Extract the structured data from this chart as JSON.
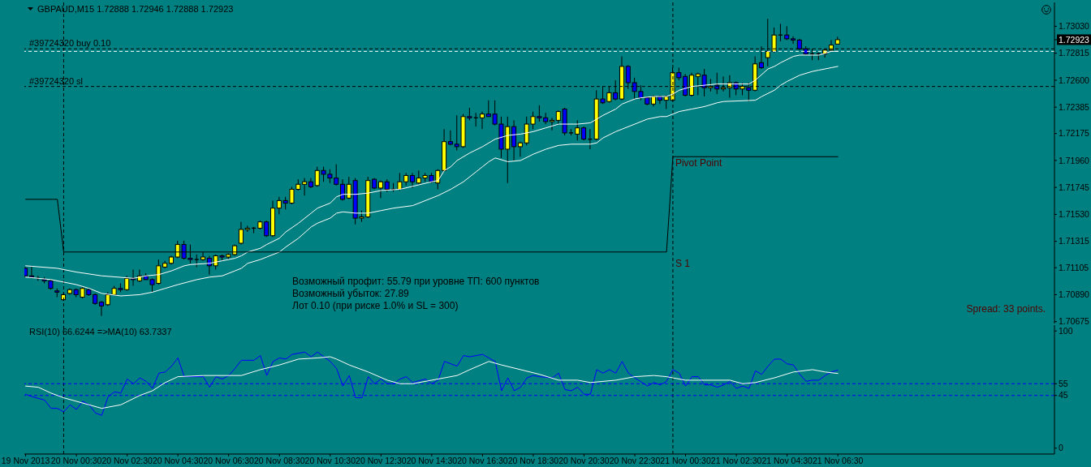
{
  "chart_data": [
    {
      "type": "candlestick",
      "title": "GBPAUD,M15 1.72888 1.72946 1.72888 1.72923",
      "x": [
        "2013-11-19T22:30",
        "2013-11-19T22:45",
        "2013-11-19T23:00",
        "2013-11-19T23:15",
        "2013-11-19T23:30",
        "2013-11-19T23:45",
        "2013-11-20T00:00",
        "2013-11-20T00:15",
        "2013-11-20T00:30",
        "2013-11-20T00:45",
        "2013-11-20T01:00",
        "2013-11-20T01:15",
        "2013-11-20T01:30",
        "2013-11-20T01:45",
        "2013-11-20T02:00",
        "2013-11-20T02:15",
        "2013-11-20T02:30",
        "2013-11-20T02:45",
        "2013-11-20T03:00",
        "2013-11-20T03:15",
        "2013-11-20T03:30",
        "2013-11-20T03:45",
        "2013-11-20T04:00",
        "2013-11-20T04:15",
        "2013-11-20T04:30",
        "2013-11-20T04:45",
        "2013-11-20T05:00",
        "2013-11-20T05:15",
        "2013-11-20T05:30",
        "2013-11-20T05:45",
        "2013-11-20T06:00",
        "2013-11-20T06:15",
        "2013-11-20T06:30",
        "2013-11-20T06:45",
        "2013-11-20T07:00",
        "2013-11-20T07:15",
        "2013-11-20T07:30",
        "2013-11-20T07:45",
        "2013-11-20T08:00",
        "2013-11-20T08:15",
        "2013-11-20T08:30",
        "2013-11-20T08:45",
        "2013-11-20T09:00",
        "2013-11-20T09:15",
        "2013-11-20T09:30",
        "2013-11-20T09:45",
        "2013-11-20T10:00",
        "2013-11-20T10:15",
        "2013-11-20T10:30",
        "2013-11-20T10:45",
        "2013-11-20T11:00",
        "2013-11-20T11:15",
        "2013-11-20T11:30",
        "2013-11-20T11:45",
        "2013-11-20T12:00",
        "2013-11-20T12:15",
        "2013-11-20T12:30",
        "2013-11-20T12:45",
        "2013-11-20T13:00",
        "2013-11-20T13:15",
        "2013-11-20T13:30",
        "2013-11-20T13:45",
        "2013-11-20T14:00",
        "2013-11-20T14:15",
        "2013-11-20T14:30",
        "2013-11-20T14:45",
        "2013-11-20T15:00",
        "2013-11-20T15:15",
        "2013-11-20T15:30",
        "2013-11-20T15:45",
        "2013-11-20T16:00",
        "2013-11-20T16:15",
        "2013-11-20T16:30",
        "2013-11-20T16:45",
        "2013-11-20T17:00",
        "2013-11-20T17:15",
        "2013-11-20T17:30",
        "2013-11-20T17:45",
        "2013-11-20T18:00",
        "2013-11-20T18:15",
        "2013-11-20T18:30",
        "2013-11-20T18:45",
        "2013-11-20T19:00",
        "2013-11-20T19:15",
        "2013-11-20T19:30",
        "2013-11-20T19:45",
        "2013-11-20T20:00",
        "2013-11-20T20:15",
        "2013-11-20T20:30",
        "2013-11-20T20:45",
        "2013-11-20T21:00",
        "2013-11-20T21:15",
        "2013-11-20T21:30",
        "2013-11-20T21:45",
        "2013-11-20T22:00",
        "2013-11-20T22:15",
        "2013-11-20T22:30",
        "2013-11-20T22:45",
        "2013-11-20T23:00",
        "2013-11-20T23:15",
        "2013-11-20T23:30",
        "2013-11-20T23:45",
        "2013-11-21T00:00",
        "2013-11-21T00:15",
        "2013-11-21T00:30",
        "2013-11-21T00:45",
        "2013-11-21T01:00",
        "2013-11-21T01:15",
        "2013-11-21T01:30",
        "2013-11-21T01:45",
        "2013-11-21T02:00",
        "2013-11-21T02:15",
        "2013-11-21T02:30",
        "2013-11-21T02:45",
        "2013-11-21T03:00",
        "2013-11-21T03:15",
        "2013-11-21T03:30",
        "2013-11-21T03:45",
        "2013-11-21T04:00",
        "2013-11-21T04:15",
        "2013-11-21T04:30",
        "2013-11-21T04:45",
        "2013-11-21T05:00",
        "2013-11-21T05:15",
        "2013-11-21T05:30",
        "2013-11-21T05:45",
        "2013-11-21T06:00",
        "2013-11-21T06:15",
        "2013-11-21T06:30"
      ],
      "ohlc": [
        [
          1.711,
          1.7111,
          1.7103,
          1.7104
        ],
        [
          1.7104,
          1.7112,
          1.7102,
          1.7103
        ],
        [
          1.7102,
          1.7104,
          1.71,
          1.7102
        ],
        [
          1.7101,
          1.7103,
          1.7098,
          1.71
        ],
        [
          1.71,
          1.7101,
          1.7093,
          1.7094
        ],
        [
          1.7092,
          1.7094,
          1.7087,
          1.7091
        ],
        [
          1.7085,
          1.709,
          1.7084,
          1.7089
        ],
        [
          1.709,
          1.7094,
          1.7089,
          1.7093
        ],
        [
          1.7093,
          1.7094,
          1.7087,
          1.7089
        ],
        [
          1.7087,
          1.7095,
          1.7086,
          1.7094
        ],
        [
          1.7093,
          1.7094,
          1.7088,
          1.7089
        ],
        [
          1.7089,
          1.709,
          1.7081,
          1.7082
        ],
        [
          1.7083,
          1.7084,
          1.7072,
          1.708
        ],
        [
          1.7081,
          1.7091,
          1.708,
          1.7089
        ],
        [
          1.7089,
          1.7096,
          1.7089,
          1.7094
        ],
        [
          1.7094,
          1.7098,
          1.7091,
          1.7093
        ],
        [
          1.7093,
          1.7104,
          1.7092,
          1.7102
        ],
        [
          1.7102,
          1.7109,
          1.7096,
          1.7101
        ],
        [
          1.71,
          1.7109,
          1.7099,
          1.7104
        ],
        [
          1.7104,
          1.7106,
          1.7101,
          1.7101
        ],
        [
          1.7101,
          1.7102,
          1.7091,
          1.7097
        ],
        [
          1.7098,
          1.7117,
          1.7097,
          1.7112
        ],
        [
          1.7111,
          1.7116,
          1.711,
          1.7114
        ],
        [
          1.7114,
          1.712,
          1.7113,
          1.7119
        ],
        [
          1.7119,
          1.7132,
          1.7118,
          1.7129
        ],
        [
          1.7129,
          1.7132,
          1.7117,
          1.7118
        ],
        [
          1.7118,
          1.7129,
          1.7114,
          1.7117
        ],
        [
          1.7117,
          1.7121,
          1.7111,
          1.7117
        ],
        [
          1.7117,
          1.7123,
          1.7116,
          1.7119
        ],
        [
          1.7118,
          1.712,
          1.7105,
          1.7112
        ],
        [
          1.7112,
          1.7121,
          1.7109,
          1.712
        ],
        [
          1.712,
          1.7121,
          1.7116,
          1.7119
        ],
        [
          1.7119,
          1.7122,
          1.7117,
          1.7121
        ],
        [
          1.7121,
          1.7129,
          1.712,
          1.7128
        ],
        [
          1.713,
          1.7147,
          1.7129,
          1.7141
        ],
        [
          1.7141,
          1.7144,
          1.7139,
          1.7142
        ],
        [
          1.7142,
          1.7143,
          1.7138,
          1.7142
        ],
        [
          1.7142,
          1.7148,
          1.7141,
          1.7147
        ],
        [
          1.7147,
          1.7148,
          1.7135,
          1.7136
        ],
        [
          1.7136,
          1.7164,
          1.7135,
          1.7158
        ],
        [
          1.7158,
          1.7167,
          1.7153,
          1.7164
        ],
        [
          1.7164,
          1.7167,
          1.7157,
          1.7162
        ],
        [
          1.7162,
          1.7175,
          1.7161,
          1.7173
        ],
        [
          1.7173,
          1.7181,
          1.7172,
          1.7177
        ],
        [
          1.7177,
          1.7182,
          1.7168,
          1.7179
        ],
        [
          1.7179,
          1.7182,
          1.7174,
          1.7175
        ],
        [
          1.7176,
          1.7191,
          1.7175,
          1.7188
        ],
        [
          1.7188,
          1.7191,
          1.7179,
          1.7185
        ],
        [
          1.7185,
          1.7189,
          1.7178,
          1.7182
        ],
        [
          1.7182,
          1.7193,
          1.7176,
          1.7177
        ],
        [
          1.7177,
          1.7181,
          1.7164,
          1.7165
        ],
        [
          1.7166,
          1.7183,
          1.7165,
          1.7177
        ],
        [
          1.718,
          1.7182,
          1.7145,
          1.715
        ],
        [
          1.715,
          1.7156,
          1.7147,
          1.7151
        ],
        [
          1.7151,
          1.7183,
          1.715,
          1.718
        ],
        [
          1.7181,
          1.7182,
          1.7173,
          1.7174
        ],
        [
          1.7174,
          1.718,
          1.7166,
          1.7179
        ],
        [
          1.7179,
          1.7181,
          1.7171,
          1.7173
        ],
        [
          1.7173,
          1.7178,
          1.7171,
          1.7173
        ],
        [
          1.7173,
          1.7186,
          1.7172,
          1.7179
        ],
        [
          1.7179,
          1.7186,
          1.7176,
          1.7184
        ],
        [
          1.7184,
          1.7186,
          1.7174,
          1.7179
        ],
        [
          1.7178,
          1.7188,
          1.7177,
          1.7182
        ],
        [
          1.7182,
          1.7186,
          1.7179,
          1.7184
        ],
        [
          1.7184,
          1.7186,
          1.7178,
          1.7179
        ],
        [
          1.7178,
          1.7189,
          1.7173,
          1.7188
        ],
        [
          1.7188,
          1.7221,
          1.7187,
          1.7211
        ],
        [
          1.7211,
          1.722,
          1.7208,
          1.7209
        ],
        [
          1.7209,
          1.7232,
          1.7204,
          1.7207
        ],
        [
          1.7207,
          1.7233,
          1.7206,
          1.7231
        ],
        [
          1.7231,
          1.7238,
          1.7228,
          1.723
        ],
        [
          1.723,
          1.7234,
          1.7223,
          1.723
        ],
        [
          1.723,
          1.7235,
          1.7221,
          1.7233
        ],
        [
          1.7233,
          1.7244,
          1.7231,
          1.7231
        ],
        [
          1.7233,
          1.7244,
          1.7224,
          1.7225
        ],
        [
          1.7225,
          1.7231,
          1.7198,
          1.7205
        ],
        [
          1.7205,
          1.7231,
          1.7178,
          1.7223
        ],
        [
          1.7223,
          1.7228,
          1.7196,
          1.7207
        ],
        [
          1.7207,
          1.7211,
          1.7199,
          1.721
        ],
        [
          1.721,
          1.7231,
          1.7208,
          1.7225
        ],
        [
          1.7225,
          1.7235,
          1.7221,
          1.7231
        ],
        [
          1.7231,
          1.724,
          1.7227,
          1.723
        ],
        [
          1.723,
          1.7234,
          1.7225,
          1.7227
        ],
        [
          1.7227,
          1.723,
          1.722,
          1.7228
        ],
        [
          1.7228,
          1.7236,
          1.7225,
          1.7235
        ],
        [
          1.7237,
          1.7238,
          1.7216,
          1.7218
        ],
        [
          1.7218,
          1.7221,
          1.7216,
          1.7218
        ],
        [
          1.7217,
          1.7228,
          1.7212,
          1.7222
        ],
        [
          1.7222,
          1.7223,
          1.7212,
          1.7213
        ],
        [
          1.7213,
          1.7221,
          1.7205,
          1.7213
        ],
        [
          1.7213,
          1.7252,
          1.7212,
          1.7245
        ],
        [
          1.7245,
          1.7255,
          1.7241,
          1.7242
        ],
        [
          1.7243,
          1.7255,
          1.7242,
          1.725
        ],
        [
          1.725,
          1.726,
          1.7244,
          1.7245
        ],
        [
          1.7245,
          1.7279,
          1.7244,
          1.7271
        ],
        [
          1.7271,
          1.7272,
          1.7253,
          1.7258
        ],
        [
          1.7258,
          1.7262,
          1.7245,
          1.7251
        ],
        [
          1.7251,
          1.7256,
          1.7244,
          1.7246
        ],
        [
          1.7246,
          1.7247,
          1.724,
          1.7241
        ],
        [
          1.7241,
          1.7248,
          1.7239,
          1.7247
        ],
        [
          1.7247,
          1.7248,
          1.7241,
          1.7244
        ],
        [
          1.7244,
          1.7248,
          1.7237,
          1.7247
        ],
        [
          1.7244,
          1.727,
          1.7243,
          1.7266
        ],
        [
          1.7266,
          1.727,
          1.726,
          1.7262
        ],
        [
          1.7263,
          1.7265,
          1.7247,
          1.7248
        ],
        [
          1.7248,
          1.7266,
          1.7247,
          1.7264
        ],
        [
          1.7263,
          1.7266,
          1.7248,
          1.7265
        ],
        [
          1.7264,
          1.7269,
          1.7247,
          1.7254
        ],
        [
          1.7254,
          1.7261,
          1.7251,
          1.7255
        ],
        [
          1.7256,
          1.7266,
          1.7249,
          1.7253
        ],
        [
          1.7253,
          1.7263,
          1.7251,
          1.7254
        ],
        [
          1.7254,
          1.7264,
          1.7246,
          1.7258
        ],
        [
          1.7258,
          1.7259,
          1.7248,
          1.7253
        ],
        [
          1.7253,
          1.7258,
          1.7248,
          1.7255
        ],
        [
          1.7254,
          1.7258,
          1.7243,
          1.7252
        ],
        [
          1.7252,
          1.7279,
          1.7251,
          1.7273
        ],
        [
          1.7274,
          1.7287,
          1.7269,
          1.727
        ],
        [
          1.7278,
          1.7309,
          1.7271,
          1.7283
        ],
        [
          1.7283,
          1.7302,
          1.7282,
          1.7296
        ],
        [
          1.7296,
          1.7305,
          1.7291,
          1.7296
        ],
        [
          1.7296,
          1.7303,
          1.7292,
          1.7293
        ],
        [
          1.7293,
          1.7295,
          1.7289,
          1.7292
        ],
        [
          1.7292,
          1.7293,
          1.7284,
          1.7285
        ],
        [
          1.7285,
          1.7287,
          1.728,
          1.7281
        ],
        [
          1.7281,
          1.7285,
          1.7276,
          1.7281
        ],
        [
          1.7281,
          1.7282,
          1.7276,
          1.7281
        ],
        [
          1.7281,
          1.7285,
          1.7278,
          1.7284
        ],
        [
          1.7284,
          1.7292,
          1.7283,
          1.7288
        ],
        [
          1.72888,
          1.72946,
          1.72888,
          1.72923
        ]
      ],
      "colors": [
        "#0000ff",
        "#0000ff",
        "#000000",
        "#0000ff",
        "#0000ff",
        "#0000ff",
        "#ffff00",
        "#ffff00",
        "#0000ff",
        "#ffff00",
        "#0000ff",
        "#0000ff",
        "#0000ff",
        "#ffff00",
        "#ffff00",
        "#0000ff",
        "#ffff00",
        "#0000ff",
        "#ffff00",
        "#0000ff",
        "#0000ff",
        "#ffff00",
        "#ffff00",
        "#ffff00",
        "#ffff00",
        "#0000ff",
        "#0000ff",
        "#000000",
        "#ffff00",
        "#0000ff",
        "#ffff00",
        "#0000ff",
        "#ffff00",
        "#ffff00",
        "#ffff00",
        "#ffff00",
        "#000000",
        "#ffff00",
        "#0000ff",
        "#ffff00",
        "#ffff00",
        "#0000ff",
        "#ffff00",
        "#ffff00",
        "#ffff00",
        "#0000ff",
        "#ffff00",
        "#0000ff",
        "#0000ff",
        "#0000ff",
        "#0000ff",
        "#ffff00",
        "#0000ff",
        "#ffff00",
        "#ffff00",
        "#0000ff",
        "#ffff00",
        "#0000ff",
        "#000000",
        "#ffff00",
        "#ffff00",
        "#0000ff",
        "#ffff00",
        "#ffff00",
        "#0000ff",
        "#ffff00",
        "#ffff00",
        "#0000ff",
        "#0000ff",
        "#ffff00",
        "#0000ff",
        "#000000",
        "#ffff00",
        "#0000ff",
        "#0000ff",
        "#0000ff",
        "#ffff00",
        "#0000ff",
        "#ffff00",
        "#ffff00",
        "#ffff00",
        "#0000ff",
        "#0000ff",
        "#ffff00",
        "#ffff00",
        "#0000ff",
        "#000000",
        "#ffff00",
        "#0000ff",
        "#000000",
        "#ffff00",
        "#0000ff",
        "#ffff00",
        "#0000ff",
        "#ffff00",
        "#0000ff",
        "#0000ff",
        "#0000ff",
        "#0000ff",
        "#ffff00",
        "#0000ff",
        "#ffff00",
        "#ffff00",
        "#0000ff",
        "#0000ff",
        "#ffff00",
        "#ffff00",
        "#0000ff",
        "#ffff00",
        "#0000ff",
        "#ffff00",
        "#ffff00",
        "#0000ff",
        "#ffff00",
        "#0000ff",
        "#ffff00",
        "#0000ff",
        "#ffff00",
        "#ffff00",
        "#000000",
        "#0000ff",
        "#0000ff",
        "#0000ff",
        "#0000ff",
        "#000000",
        "#000000",
        "#ffff00",
        "#ffff00",
        "#ffff00"
      ],
      "series": [
        {
          "type": "line",
          "color": "#ffffff",
          "x": [
            "2013-11-19T22:30",
            "2013-11-19T23:45",
            "2013-11-20T00:30",
            "2013-11-20T01:30",
            "2013-11-20T02:45",
            "2013-11-20T03:15",
            "2013-11-20T03:45",
            "2013-11-20T04:15",
            "2013-11-20T04:45",
            "2013-11-20T05:00",
            "2013-11-20T05:45",
            "2013-11-20T06:15",
            "2013-11-20T06:45",
            "2013-11-20T07:00",
            "2013-11-20T07:15",
            "2013-11-20T07:45",
            "2013-11-20T08:00",
            "2013-11-20T08:30",
            "2013-11-20T08:45",
            "2013-11-20T09:15",
            "2013-11-20T09:45",
            "2013-11-20T10:00",
            "2013-11-20T10:30",
            "2013-11-20T10:45",
            "2013-11-20T11:00",
            "2013-11-20T11:30",
            "2013-11-20T12:00",
            "2013-11-20T12:30",
            "2013-11-20T13:15",
            "2013-11-20T14:30",
            "2013-11-20T14:45",
            "2013-11-20T15:00",
            "2013-11-20T15:15",
            "2013-11-20T15:30",
            "2013-11-20T16:00",
            "2013-11-20T16:30",
            "2013-11-20T17:00",
            "2013-11-20T17:30",
            "2013-11-20T18:00",
            "2013-11-20T18:30",
            "2013-11-20T19:00",
            "2013-11-20T19:30",
            "2013-11-20T19:45",
            "2013-11-20T20:15",
            "2013-11-20T20:45",
            "2013-11-20T21:00",
            "2013-11-20T21:15",
            "2013-11-20T21:45",
            "2013-11-20T22:00",
            "2013-11-20T22:30",
            "2013-11-20T22:45",
            "2013-11-20T23:15",
            "2013-11-20T23:45",
            "2013-11-21T00:00",
            "2013-11-21T00:15",
            "2013-11-21T00:45",
            "2013-11-21T01:15",
            "2013-11-21T01:45",
            "2013-11-21T03:00",
            "2013-11-21T03:15",
            "2013-11-21T03:45",
            "2013-11-21T04:00",
            "2013-11-21T04:15",
            "2013-11-21T04:45",
            "2013-11-21T05:00",
            "2013-11-21T05:45",
            "2013-11-21T06:15",
            "2013-11-21T06:30"
          ],
          "values": [
            1.7112,
            1.711,
            1.7107,
            1.7104,
            1.7102,
            1.7104,
            1.7105,
            1.7108,
            1.7112,
            1.7113,
            1.7114,
            1.7116,
            1.7118,
            1.712,
            1.7123,
            1.7126,
            1.7129,
            1.7134,
            1.7139,
            1.7146,
            1.7154,
            1.7158,
            1.7162,
            1.7167,
            1.7169,
            1.7169,
            1.717,
            1.7172,
            1.7173,
            1.7179,
            1.718,
            1.7188,
            1.7191,
            1.7196,
            1.7202,
            1.7207,
            1.7213,
            1.7216,
            1.7217,
            1.7219,
            1.7222,
            1.7225,
            1.7225,
            1.7225,
            1.7226,
            1.7229,
            1.7232,
            1.7237,
            1.7241,
            1.7245,
            1.7246,
            1.7247,
            1.7247,
            1.7249,
            1.7252,
            1.7255,
            1.7256,
            1.7257,
            1.7257,
            1.726,
            1.7269,
            1.7271,
            1.7274,
            1.7279,
            1.728,
            1.728,
            1.7283,
            1.7283
          ]
        },
        {
          "type": "line",
          "color": "#ffffff",
          "x": [
            "2013-11-19T22:30",
            "2013-11-19T23:30",
            "2013-11-20T00:30",
            "2013-11-20T01:00",
            "2013-11-20T01:30",
            "2013-11-20T02:15",
            "2013-11-20T03:00",
            "2013-11-20T03:30",
            "2013-11-20T04:00",
            "2013-11-20T04:30",
            "2013-11-20T05:15",
            "2013-11-20T05:45",
            "2013-11-20T06:15",
            "2013-11-20T06:45",
            "2013-11-20T07:00",
            "2013-11-20T07:15",
            "2013-11-20T07:45",
            "2013-11-20T08:00",
            "2013-11-20T08:30",
            "2013-11-20T08:45",
            "2013-11-20T09:15",
            "2013-11-20T09:45",
            "2013-11-20T10:00",
            "2013-11-20T10:30",
            "2013-11-20T10:45",
            "2013-11-20T11:00",
            "2013-11-20T11:30",
            "2013-11-20T12:00",
            "2013-11-20T12:30",
            "2013-11-20T13:00",
            "2013-11-20T13:45",
            "2013-11-20T14:15",
            "2013-11-20T14:45",
            "2013-11-20T15:15",
            "2013-11-20T15:45",
            "2013-11-20T16:15",
            "2013-11-20T16:30",
            "2013-11-20T16:45",
            "2013-11-20T17:00",
            "2013-11-20T17:30",
            "2013-11-20T18:00",
            "2013-11-20T18:30",
            "2013-11-20T19:00",
            "2013-11-20T19:30",
            "2013-11-20T20:00",
            "2013-11-20T20:45",
            "2013-11-20T21:00",
            "2013-11-20T21:15",
            "2013-11-20T21:45",
            "2013-11-20T22:00",
            "2013-11-20T22:30",
            "2013-11-20T23:00",
            "2013-11-20T23:30",
            "2013-11-20T23:45",
            "2013-11-21T00:15",
            "2013-11-21T00:45",
            "2013-11-21T01:15",
            "2013-11-21T01:45",
            "2013-11-21T02:00",
            "2013-11-21T03:15",
            "2013-11-21T03:30",
            "2013-11-21T04:00",
            "2013-11-21T04:15",
            "2013-11-21T04:30",
            "2013-11-21T05:00",
            "2013-11-21T05:30",
            "2013-11-21T05:45",
            "2013-11-21T06:15",
            "2013-11-21T06:30"
          ],
          "values": [
            1.7103,
            1.7101,
            1.7097,
            1.7094,
            1.709,
            1.7088,
            1.7089,
            1.7091,
            1.7094,
            1.7097,
            1.7101,
            1.7103,
            1.7104,
            1.7108,
            1.711,
            1.7114,
            1.7117,
            1.7119,
            1.7123,
            1.7127,
            1.7134,
            1.7143,
            1.7146,
            1.715,
            1.7154,
            1.7155,
            1.7154,
            1.7154,
            1.7156,
            1.7158,
            1.716,
            1.7164,
            1.7168,
            1.7173,
            1.7179,
            1.7187,
            1.7191,
            1.7195,
            1.7198,
            1.7195,
            1.7196,
            1.7201,
            1.7205,
            1.7208,
            1.7209,
            1.7209,
            1.721,
            1.7214,
            1.7219,
            1.7221,
            1.7225,
            1.7229,
            1.7231,
            1.7231,
            1.7235,
            1.7237,
            1.7239,
            1.7242,
            1.7243,
            1.7244,
            1.7247,
            1.7252,
            1.7256,
            1.7259,
            1.7264,
            1.7267,
            1.7268,
            1.727,
            1.7271
          ]
        },
        {
          "type": "line",
          "color": "#000000",
          "x": [
            "2013-11-19T22:30",
            "2013-11-19T23:45",
            "2013-11-20T00:00",
            "2013-11-20T23:45",
            "2013-11-21T00:00",
            "2013-11-21T06:30"
          ],
          "values": [
            1.7165,
            1.7165,
            1.7123,
            1.7123,
            1.7199,
            1.7199
          ]
        }
      ],
      "xlim": [
        "2013-11-19T22:27",
        "2013-11-21T15:02"
      ],
      "ylim": [
        1.7066,
        1.7322
      ],
      "yticks": [
        {
          "value": 1.7303,
          "label": "1.73030"
        },
        {
          "value": 1.72923,
          "label": "1.72923"
        },
        {
          "value": 1.72815,
          "label": "1.72815"
        },
        {
          "value": 1.726,
          "label": "1.72600"
        },
        {
          "value": 1.72385,
          "label": "1.72385"
        },
        {
          "value": 1.72175,
          "label": "1.72175"
        },
        {
          "value": 1.7196,
          "label": "1.71960"
        },
        {
          "value": 1.71745,
          "label": "1.71745"
        },
        {
          "value": 1.7153,
          "label": "1.71530"
        },
        {
          "value": 1.71315,
          "label": "1.71315"
        },
        {
          "value": 1.71105,
          "label": "1.71105"
        },
        {
          "value": 1.7089,
          "label": "1.70890"
        },
        {
          "value": 1.70675,
          "label": "1.70675"
        }
      ],
      "tick_labels": "y",
      "ref_lines": [
        {
          "axis": "x",
          "value": "2013-11-20T00:00",
          "color": "#000000",
          "line_style": "dashed"
        },
        {
          "axis": "x",
          "value": "2013-11-21T00:00",
          "color": "#000000",
          "line_style": "dashed"
        },
        {
          "axis": "y",
          "value": 1.7285,
          "label": "#39724320 buy 0.10",
          "color": "#000000",
          "line_style": "dashed"
        },
        {
          "axis": "y",
          "value": 1.7283,
          "color": "#ffffff",
          "line_style": "dashed"
        },
        {
          "axis": "y",
          "value": 1.7255,
          "label": "#39724320 sl",
          "color": "#000000",
          "line_style": "dashed"
        }
      ],
      "annotations": [
        "Возможный профит: 55.79 при уровне ТП: 600 пунктов",
        "Возможный убыток: 27.89",
        "Лот 0.10 (при риске 1.0% и SL = 300)",
        "Spread: 33 points.",
        {
          "text": "Pivot Point",
          "x": "2013-11-21T00:00",
          "y": 1.7194
        },
        {
          "text": "S 1",
          "x": "2013-11-21T00:00",
          "y": 1.7114
        }
      ]
    },
    {
      "type": "line",
      "title": "RSI(10) 66.6244 =>MA(10) 63.7337",
      "series": [
        {
          "color": "#0000ff",
          "x": [
            "2013-11-19T22:30",
            "2013-11-19T22:45",
            "2013-11-19T23:15",
            "2013-11-19T23:30",
            "2013-11-19T23:45",
            "2013-11-20T00:00",
            "2013-11-20T00:15",
            "2013-11-20T00:30",
            "2013-11-20T00:45",
            "2013-11-20T01:00",
            "2013-11-20T01:15",
            "2013-11-20T01:30",
            "2013-11-20T01:45",
            "2013-11-20T02:00",
            "2013-11-20T02:15",
            "2013-11-20T02:30",
            "2013-11-20T02:45",
            "2013-11-20T03:00",
            "2013-11-20T03:15",
            "2013-11-20T03:30",
            "2013-11-20T03:45",
            "2013-11-20T04:00",
            "2013-11-20T04:15",
            "2013-11-20T04:30",
            "2013-11-20T04:45",
            "2013-11-20T05:15",
            "2013-11-20T05:30",
            "2013-11-20T05:45",
            "2013-11-20T06:00",
            "2013-11-20T06:15",
            "2013-11-20T06:30",
            "2013-11-20T06:45",
            "2013-11-20T07:00",
            "2013-11-20T07:30",
            "2013-11-20T07:45",
            "2013-11-20T08:00",
            "2013-11-20T08:15",
            "2013-11-20T08:30",
            "2013-11-20T08:45",
            "2013-11-20T09:00",
            "2013-11-20T09:30",
            "2013-11-20T09:45",
            "2013-11-20T10:00",
            "2013-11-20T10:15",
            "2013-11-20T10:30",
            "2013-11-20T10:45",
            "2013-11-20T11:00",
            "2013-11-20T11:15",
            "2013-11-20T11:30",
            "2013-11-20T11:45",
            "2013-11-20T12:00",
            "2013-11-20T12:15",
            "2013-11-20T12:30",
            "2013-11-20T12:45",
            "2013-11-20T13:00",
            "2013-11-20T13:15",
            "2013-11-20T13:30",
            "2013-11-20T13:45",
            "2013-11-20T14:15",
            "2013-11-20T14:30",
            "2013-11-20T14:45",
            "2013-11-20T15:00",
            "2013-11-20T15:30",
            "2013-11-20T15:45",
            "2013-11-20T16:00",
            "2013-11-20T16:30",
            "2013-11-20T16:45",
            "2013-11-20T17:00",
            "2013-11-20T17:15",
            "2013-11-20T17:30",
            "2013-11-20T17:45",
            "2013-11-20T18:00",
            "2013-11-20T18:15",
            "2013-11-20T18:30",
            "2013-11-20T18:45",
            "2013-11-20T19:15",
            "2013-11-20T19:30",
            "2013-11-20T19:45",
            "2013-11-20T20:00",
            "2013-11-20T20:15",
            "2013-11-20T20:30",
            "2013-11-20T20:45",
            "2013-11-20T21:00",
            "2013-11-20T21:15",
            "2013-11-20T21:30",
            "2013-11-20T21:45",
            "2013-11-20T22:00",
            "2013-11-20T22:15",
            "2013-11-20T22:30",
            "2013-11-20T23:00",
            "2013-11-20T23:15",
            "2013-11-20T23:30",
            "2013-11-20T23:45",
            "2013-11-21T00:00",
            "2013-11-21T00:15",
            "2013-11-21T00:30",
            "2013-11-21T00:45",
            "2013-11-21T01:00",
            "2013-11-21T01:15",
            "2013-11-21T01:30",
            "2013-11-21T01:45",
            "2013-11-21T02:00",
            "2013-11-21T02:15",
            "2013-11-21T02:30",
            "2013-11-21T02:45",
            "2013-11-21T03:00",
            "2013-11-21T03:15",
            "2013-11-21T03:30",
            "2013-11-21T03:45",
            "2013-11-21T04:00",
            "2013-11-21T04:15",
            "2013-11-21T04:30",
            "2013-11-21T04:45",
            "2013-11-21T05:00",
            "2013-11-21T05:15",
            "2013-11-21T05:30",
            "2013-11-21T05:45",
            "2013-11-21T06:00",
            "2013-11-21T06:15",
            "2013-11-21T06:30"
          ],
          "values": [
            46,
            44,
            41,
            34,
            34,
            31,
            37,
            33,
            40,
            37,
            30,
            28,
            44,
            48,
            47,
            59,
            55,
            60,
            57,
            51,
            64,
            65,
            70,
            77,
            61,
            61,
            61,
            52,
            61,
            59,
            62,
            68,
            75,
            75,
            79,
            62,
            74,
            77,
            76,
            80,
            82,
            78,
            82,
            78,
            74,
            68,
            53,
            62,
            43,
            43,
            61,
            55,
            59,
            55,
            55,
            59,
            61,
            56,
            59,
            55,
            58,
            74,
            70,
            79,
            78,
            80,
            77,
            74,
            49,
            60,
            49,
            52,
            60,
            62,
            61,
            60,
            64,
            50,
            49,
            52,
            46,
            46,
            67,
            64,
            67,
            64,
            74,
            64,
            60,
            53,
            56,
            54,
            57,
            67,
            64,
            53,
            61,
            61,
            54,
            54,
            52,
            54,
            57,
            51,
            53,
            51,
            66,
            63,
            70,
            76,
            76,
            72,
            71,
            63,
            57,
            58,
            58,
            62,
            65,
            66.6244
          ]
        },
        {
          "color": "#ffffff",
          "x": [
            "2013-11-19T22:30",
            "2013-11-19T23:00",
            "2013-11-19T23:30",
            "2013-11-20T00:00",
            "2013-11-20T00:30",
            "2013-11-20T01:00",
            "2013-11-20T01:30",
            "2013-11-20T02:15",
            "2013-11-20T03:00",
            "2013-11-20T03:30",
            "2013-11-20T04:00",
            "2013-11-20T04:30",
            "2013-11-20T05:30",
            "2013-11-20T06:15",
            "2013-11-20T07:00",
            "2013-11-20T07:45",
            "2013-11-20T08:30",
            "2013-11-20T09:15",
            "2013-11-20T10:00",
            "2013-11-20T10:30",
            "2013-11-20T10:45",
            "2013-11-20T11:15",
            "2013-11-20T12:00",
            "2013-11-20T12:45",
            "2013-11-20T13:15",
            "2013-11-20T13:45",
            "2013-11-20T14:30",
            "2013-11-20T15:30",
            "2013-11-20T16:00",
            "2013-11-20T16:45",
            "2013-11-20T17:15",
            "2013-11-20T18:00",
            "2013-11-20T18:45",
            "2013-11-20T19:30",
            "2013-11-20T20:15",
            "2013-11-20T20:45",
            "2013-11-20T21:15",
            "2013-11-20T21:45",
            "2013-11-20T22:30",
            "2013-11-20T23:15",
            "2013-11-20T23:45",
            "2013-11-21T00:30",
            "2013-11-21T01:00",
            "2013-11-21T02:15",
            "2013-11-21T02:45",
            "2013-11-21T03:15",
            "2013-11-21T04:00",
            "2013-11-21T04:45",
            "2013-11-21T05:30",
            "2013-11-21T06:00",
            "2013-11-21T06:30"
          ],
          "values": [
            53,
            52,
            47,
            43,
            40,
            37,
            34,
            37,
            45,
            49,
            56,
            61,
            62,
            62,
            62,
            67,
            71,
            76,
            77,
            78,
            76,
            71,
            65,
            58,
            55,
            55,
            58,
            62,
            67,
            74,
            71,
            67,
            63,
            58,
            58,
            56,
            57,
            58,
            61,
            62,
            61,
            58,
            58,
            58,
            55,
            56,
            60,
            65,
            67,
            65,
            63.7337
          ]
        }
      ],
      "xlim": [
        "2013-11-19T22:27",
        "2013-11-21T15:02"
      ],
      "ylim": [
        -5,
        105
      ],
      "yticks": [
        0,
        45,
        55,
        100
      ],
      "xticks": [
        {
          "value": "2013-11-19T22:30",
          "label": "19 Nov 2013"
        },
        {
          "value": "2013-11-20T00:30",
          "label": "20 Nov 00:30"
        },
        {
          "value": "2013-11-20T02:30",
          "label": "20 Nov 02:30"
        },
        {
          "value": "2013-11-20T04:30",
          "label": "20 Nov 04:30"
        },
        {
          "value": "2013-11-20T06:30",
          "label": "20 Nov 06:30"
        },
        {
          "value": "2013-11-20T08:30",
          "label": "20 Nov 08:30"
        },
        {
          "value": "2013-11-20T10:30",
          "label": "20 Nov 10:30"
        },
        {
          "value": "2013-11-20T12:30",
          "label": "20 Nov 12:30"
        },
        {
          "value": "2013-11-20T14:30",
          "label": "20 Nov 14:30"
        },
        {
          "value": "2013-11-20T16:30",
          "label": "20 Nov 16:30"
        },
        {
          "value": "2013-11-20T18:30",
          "label": "20 Nov 18:30"
        },
        {
          "value": "2013-11-20T20:30",
          "label": "20 Nov 20:30"
        },
        {
          "value": "2013-11-20T22:30",
          "label": "20 Nov 22:30"
        },
        {
          "value": "2013-11-21T00:30",
          "label": "21 Nov 00:30"
        },
        {
          "value": "2013-11-21T02:30",
          "label": "21 Nov 02:30"
        },
        {
          "value": "2013-11-21T04:30",
          "label": "21 Nov 04:30"
        },
        {
          "value": "2013-11-21T06:30",
          "label": "21 Nov 06:30"
        }
      ],
      "ref_lines": [
        {
          "axis": "x",
          "value": "2013-11-20T00:00",
          "color": "#000000",
          "line_style": "dashed"
        },
        {
          "axis": "x",
          "value": "2013-11-21T00:00",
          "color": "#000000",
          "line_style": "dashed"
        },
        {
          "axis": "y",
          "value": 55,
          "color": "#0000ff",
          "line_style": "dashed"
        },
        {
          "axis": "y",
          "value": 45,
          "color": "#0000ff",
          "line_style": "dashed"
        }
      ]
    }
  ]
}
